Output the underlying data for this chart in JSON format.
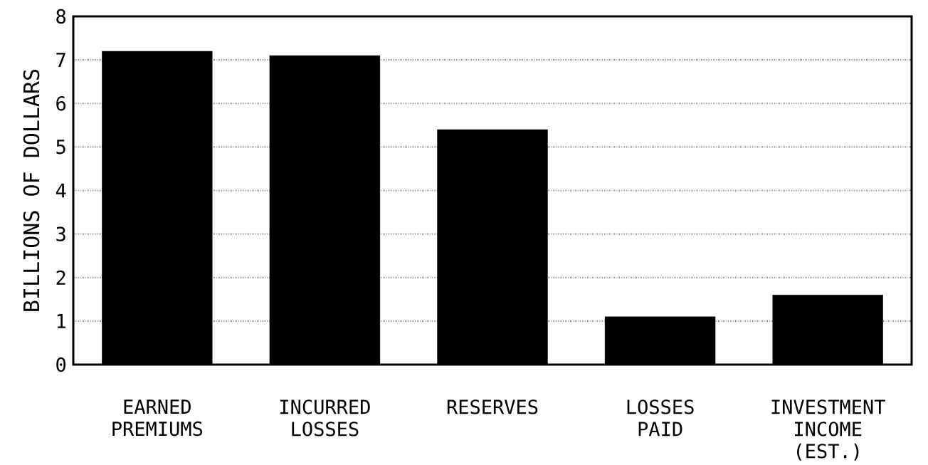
{
  "chart_data": {
    "type": "bar",
    "ylabel": "BILLIONS OF DOLLARS",
    "categories": [
      "EARNED PREMIUMS",
      "INCURRED LOSSES",
      "RESERVES",
      "LOSSES PAID",
      "INVESTMENT INCOME (EST.)"
    ],
    "values": [
      7.2,
      7.1,
      5.4,
      1.1,
      1.6
    ],
    "color": "#000000",
    "ylim": [
      0,
      8
    ],
    "yticks": [
      0,
      1,
      2,
      3,
      4,
      5,
      6,
      7,
      8
    ],
    "grid": "y"
  }
}
